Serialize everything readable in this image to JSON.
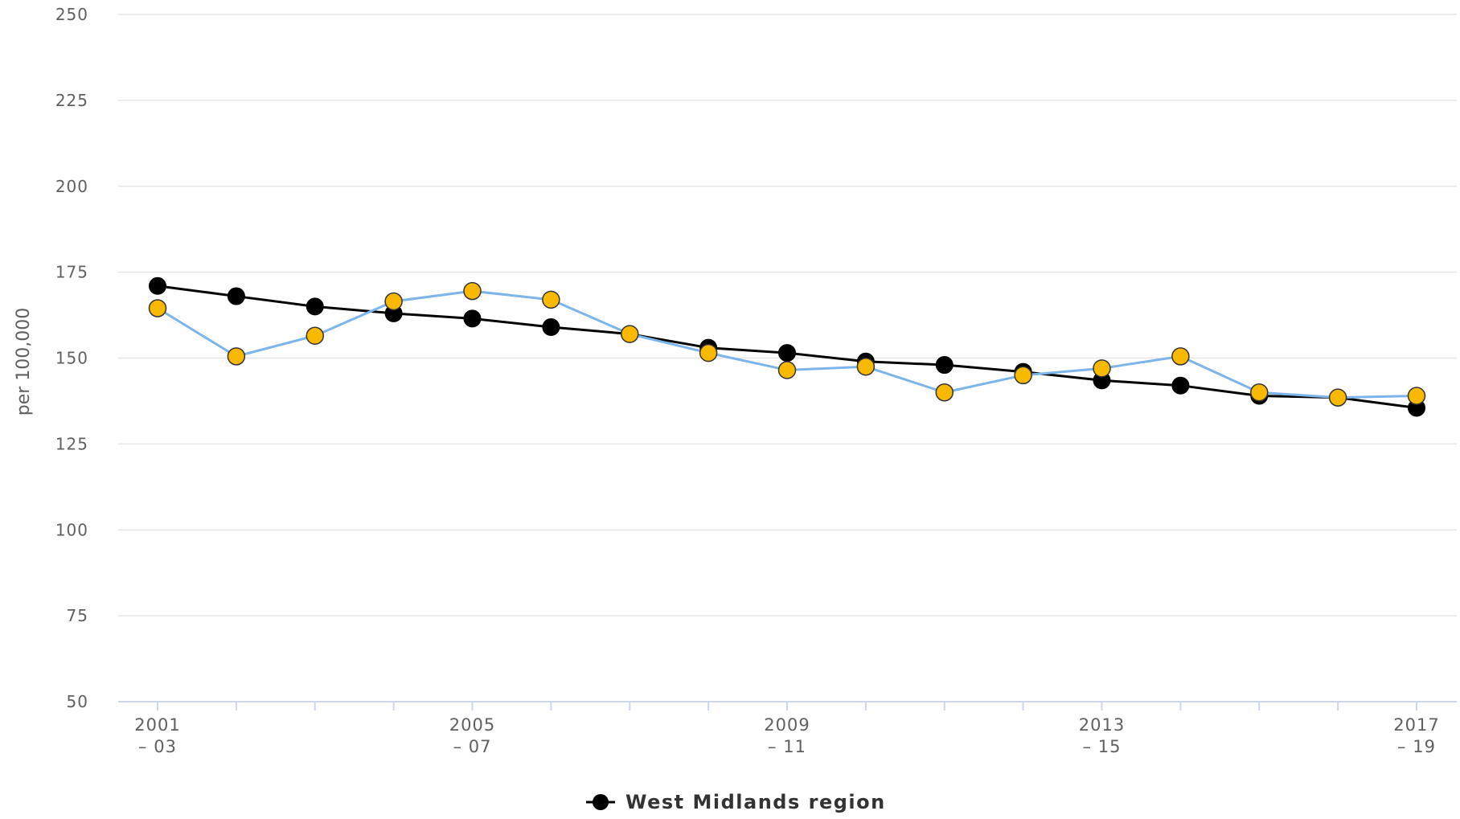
{
  "chart_data": {
    "type": "line",
    "title": "",
    "ylabel": "per 100,000",
    "ylim": [
      50,
      250
    ],
    "yticks": [
      "250",
      "225",
      "200",
      "175",
      "150",
      "125",
      "100",
      "75",
      "50"
    ],
    "categories": [
      "2001 – 03",
      "2002 – 04",
      "2003 – 05",
      "2004 – 06",
      "2005 – 07",
      "2006 – 08",
      "2007 – 09",
      "2008 – 10",
      "2009 – 11",
      "2010 – 12",
      "2011 – 13",
      "2012 – 14",
      "2013 – 15",
      "2014 – 16",
      "2015 – 17",
      "2016 – 18",
      "2017 – 19"
    ],
    "x_tick_labels": [
      {
        "index": 0,
        "line1": "2001",
        "line2": "– 03"
      },
      {
        "index": 4,
        "line1": "2005",
        "line2": "– 07"
      },
      {
        "index": 8,
        "line1": "2009",
        "line2": "– 11"
      },
      {
        "index": 12,
        "line1": "2013",
        "line2": "– 15"
      },
      {
        "index": 16,
        "line1": "2017",
        "line2": "– 19"
      }
    ],
    "grid": true,
    "legend_position": "bottom-center",
    "series": [
      {
        "name": "West Midlands region",
        "line_color": "#000000",
        "marker_color": "#000000",
        "values": [
          171,
          168,
          165,
          163,
          161.5,
          159,
          157,
          153,
          151.5,
          149,
          148,
          146,
          143.5,
          142,
          139,
          138.5,
          135.5
        ]
      },
      {
        "line_color": "#7cb5ec",
        "marker_color": "#f9b900",
        "values": [
          164.5,
          150.5,
          156.5,
          166.5,
          169.5,
          167,
          157,
          151.5,
          146.5,
          147.5,
          140,
          145,
          147,
          150.5,
          140,
          138.5,
          139
        ]
      }
    ]
  }
}
